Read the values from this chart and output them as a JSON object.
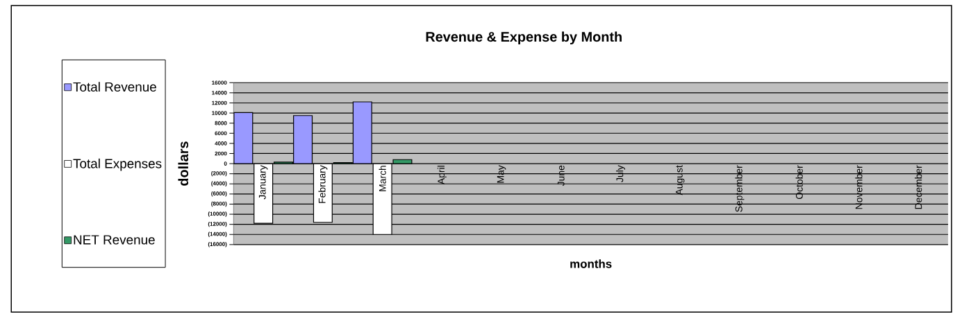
{
  "chart_data": {
    "type": "bar",
    "title": "Revenue & Expense by Month",
    "xlabel": "months",
    "ylabel": "dollars",
    "categories": [
      "January",
      "February",
      "March",
      "April",
      "May",
      "June",
      "July",
      "August",
      "September",
      "October",
      "November",
      "December"
    ],
    "series": [
      {
        "name": "Total Revenue",
        "color": "#9999ff",
        "values": [
          10100,
          9500,
          12200,
          null,
          null,
          null,
          null,
          null,
          null,
          null,
          null,
          null
        ]
      },
      {
        "name": "Total Expenses",
        "color": "#ffffff",
        "values": [
          -11800,
          -11600,
          -14000,
          null,
          null,
          null,
          null,
          null,
          null,
          null,
          null,
          null
        ]
      },
      {
        "name": "NET Revenue",
        "color": "#339966",
        "values": [
          300,
          200,
          800,
          null,
          null,
          null,
          null,
          null,
          null,
          null,
          null,
          null
        ]
      }
    ],
    "ylim": [
      -16000,
      16000
    ],
    "yticks": [
      {
        "value": -16000,
        "label": "(16000)"
      },
      {
        "value": -14000,
        "label": "(14000)"
      },
      {
        "value": -12000,
        "label": "(12000)"
      },
      {
        "value": -10000,
        "label": "(10000)"
      },
      {
        "value": -8000,
        "label": "(8000)"
      },
      {
        "value": -6000,
        "label": "(6000)"
      },
      {
        "value": -4000,
        "label": "(4000)"
      },
      {
        "value": -2000,
        "label": "(2000)"
      },
      0,
      2000,
      4000,
      6000,
      8000,
      10000,
      12000,
      14000,
      16000
    ],
    "grid": "y",
    "legend": "left"
  }
}
